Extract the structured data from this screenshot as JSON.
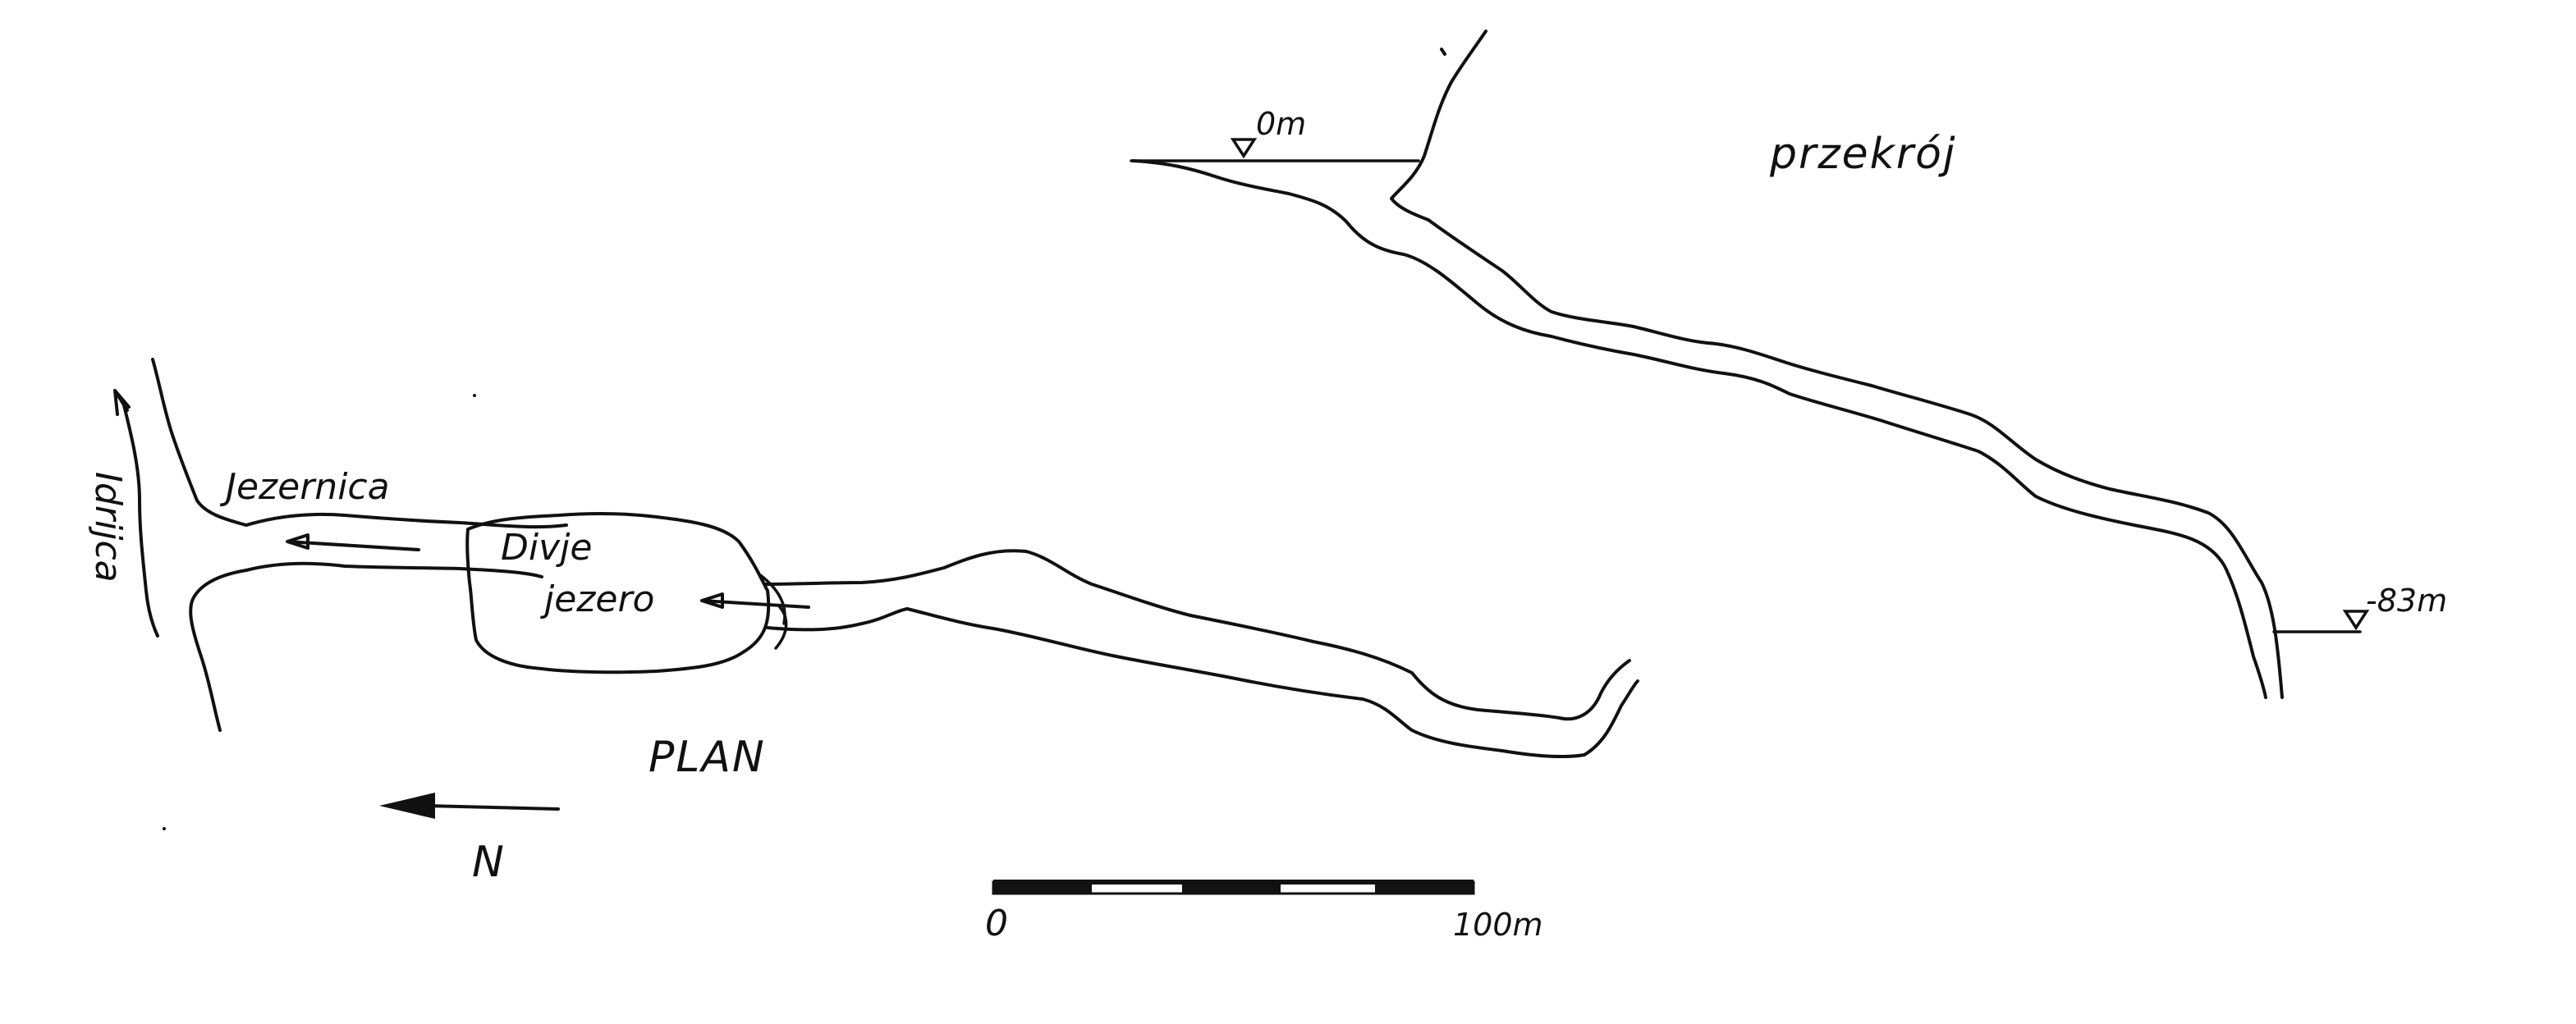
{
  "section": {
    "title": "przekrój",
    "top_level": "0m",
    "bottom_level": "-83m"
  },
  "plan": {
    "title": "PLAN",
    "river_label": "Idrijca",
    "stream_label": "Jezernica",
    "lake_label_line1": "Divje",
    "lake_label_line2": "jezero",
    "north_label": "N"
  },
  "scale_bar": {
    "start_label": "0",
    "end_label": "100m"
  },
  "colors": {
    "ink": "#111111",
    "paper": "#ffffff"
  }
}
